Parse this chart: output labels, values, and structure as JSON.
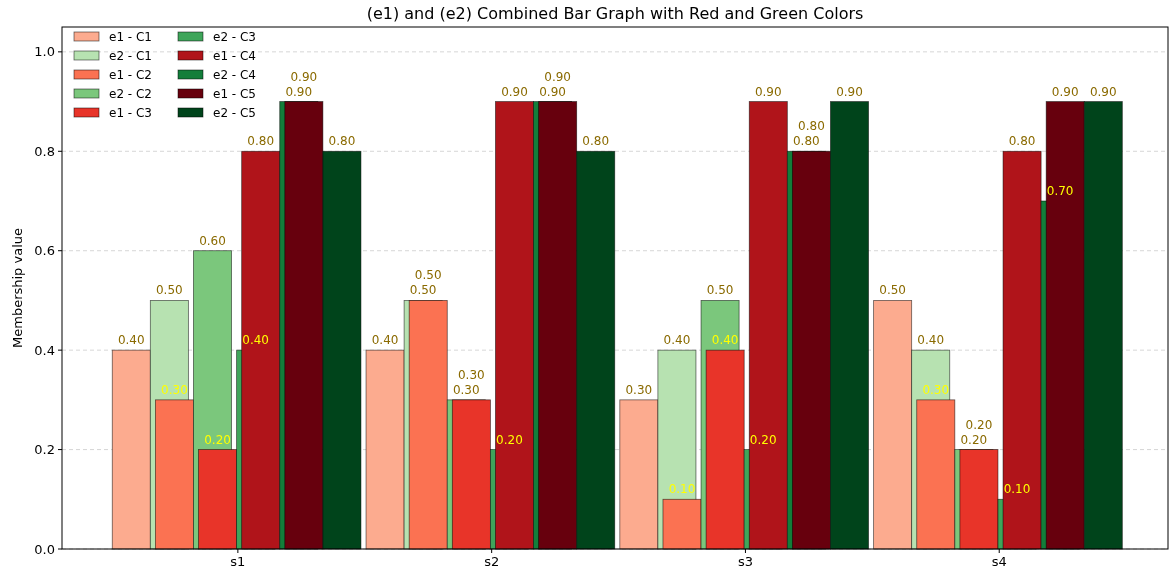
{
  "chart_data": {
    "type": "bar",
    "title": "(e1) and (e2) Combined Bar Graph with Red and Green Colors",
    "ylabel": "Membership value",
    "categories": [
      "s1",
      "s2",
      "s3",
      "s4"
    ],
    "series": [
      {
        "name": "e1 - C1",
        "color": "#fcab8f",
        "values": [
          0.4,
          0.4,
          0.3,
          0.5
        ],
        "value_labels": [
          "0.40",
          "0.40",
          "0.30",
          "0.50"
        ]
      },
      {
        "name": "e2 - C1",
        "color": "#b7e2b1",
        "values": [
          0.5,
          0.5,
          0.4,
          0.4
        ],
        "value_labels": [
          "0.50",
          "0.50",
          "0.40",
          "0.40"
        ]
      },
      {
        "name": "e1 - C2",
        "color": "#fb7252",
        "values": [
          0.3,
          0.5,
          0.1,
          0.3
        ],
        "value_labels": [
          "0.30",
          "0.50",
          "0.10",
          "0.30"
        ]
      },
      {
        "name": "e2 - C2",
        "color": "#7bc77c",
        "values": [
          0.6,
          0.3,
          0.5,
          0.2
        ],
        "value_labels": [
          "0.60",
          "0.30",
          "0.50",
          "0.20"
        ]
      },
      {
        "name": "e1 - C3",
        "color": "#e83429",
        "values": [
          0.2,
          0.3,
          0.4,
          0.2
        ],
        "value_labels": [
          "0.20",
          "0.30",
          "0.40",
          "0.20"
        ]
      },
      {
        "name": "e2 - C3",
        "color": "#3fa55a",
        "values": [
          0.4,
          0.2,
          0.2,
          0.1
        ],
        "value_labels": [
          "0.40",
          "0.20",
          "0.20",
          "0.10"
        ]
      },
      {
        "name": "e1 - C4",
        "color": "#b0141a",
        "values": [
          0.8,
          0.9,
          0.9,
          0.8
        ],
        "value_labels": [
          "0.80",
          "0.90",
          "0.90",
          "0.80"
        ]
      },
      {
        "name": "e2 - C4",
        "color": "#137e3a",
        "values": [
          0.9,
          0.9,
          0.8,
          0.7
        ],
        "value_labels": [
          "0.90",
          "0.90",
          "0.80",
          "0.70"
        ]
      },
      {
        "name": "e1 - C5",
        "color": "#67000d",
        "values": [
          0.9,
          0.9,
          0.8,
          0.9
        ],
        "value_labels": [
          "0.90",
          "0.90",
          "0.80",
          "0.90"
        ]
      },
      {
        "name": "e2 - C5",
        "color": "#00441b",
        "values": [
          0.8,
          0.8,
          0.9,
          0.9
        ],
        "value_labels": [
          "0.80",
          "0.80",
          "0.90",
          "0.90"
        ]
      }
    ],
    "ylim": [
      0,
      1.05
    ],
    "yticks": [
      {
        "value": 0,
        "label": "0.0"
      },
      {
        "value": 0.2,
        "label": "0.2"
      },
      {
        "value": 0.4,
        "label": "0.4"
      },
      {
        "value": 0.6,
        "label": "0.6"
      },
      {
        "value": 0.8,
        "label": "0.8"
      },
      {
        "value": 1,
        "label": "1.0"
      }
    ],
    "grid": "y",
    "legend": "top left"
  }
}
